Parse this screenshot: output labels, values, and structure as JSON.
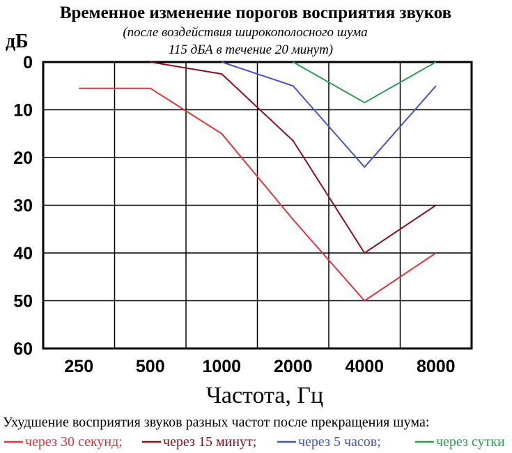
{
  "chart_data": {
    "type": "line",
    "title": "Временное изменение порогов восприятия звуков",
    "subtitle_line1": "(после воздействия широкополосного шума",
    "subtitle_line2": "115 дБА в течение 20 минут)",
    "ylabel": "дБ",
    "xlabel": "Частота, Гц",
    "categories": [
      "250",
      "500",
      "1000",
      "2000",
      "4000",
      "8000"
    ],
    "y_ticks": [
      "0",
      "10",
      "20",
      "30",
      "40",
      "50",
      "60"
    ],
    "ylim": [
      0,
      60
    ],
    "y_inverted": true,
    "grid": true,
    "series": [
      {
        "name": "через 30 секунд;",
        "color": "#e0343c",
        "x": [
          "250",
          "500",
          "1000",
          "2000",
          "4000",
          "8000"
        ],
        "values": [
          5.5,
          5.5,
          15,
          33,
          50,
          40
        ]
      },
      {
        "name": "через 15 минут;",
        "color": "#8c1020",
        "x": [
          "500",
          "1000",
          "2000",
          "4000",
          "8000"
        ],
        "values": [
          0,
          2.5,
          16.5,
          40,
          30
        ]
      },
      {
        "name": "через 5 часов;",
        "color": "#4455c0",
        "x": [
          "1000",
          "2000",
          "4000",
          "8000"
        ],
        "values": [
          0,
          5,
          22,
          5
        ]
      },
      {
        "name": "через сутки",
        "color": "#2aa050",
        "x": [
          "2000",
          "4000",
          "8000"
        ],
        "values": [
          0,
          8.5,
          0
        ]
      }
    ],
    "legend_title": "Ухудшение восприятия звуков разных частот после прекращения шума:",
    "legend_placement": "bottom"
  }
}
